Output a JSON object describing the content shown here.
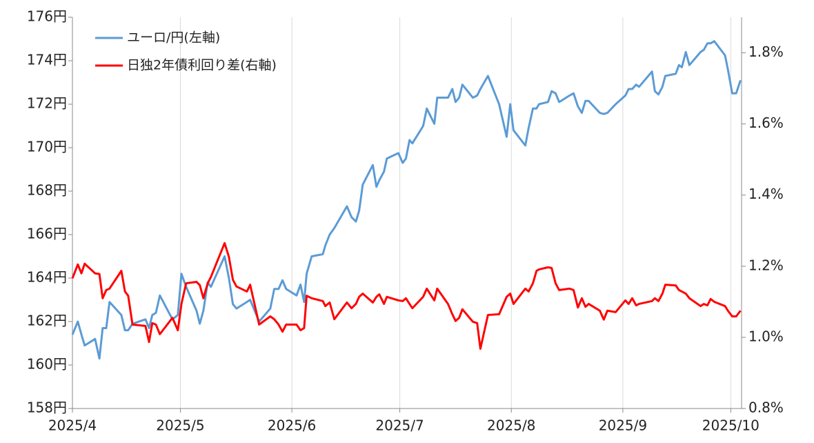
{
  "chart_data": {
    "type": "line",
    "x": [
      0,
      1.5,
      2.5,
      3.4,
      6.3,
      7.5,
      8.4,
      9.4,
      10.3,
      13.6,
      14.6,
      15.5,
      16.7,
      20.3,
      21.3,
      22.2,
      23.2,
      24.3,
      27.8,
      29.3,
      30.3,
      31.6,
      34.5,
      35.4,
      36.4,
      37.6,
      38.5,
      42.3,
      43.5,
      44.6,
      45.6,
      48.5,
      49.4,
      51.9,
      55.0,
      56.1,
      57.3,
      58.4,
      59.4,
      62.3,
      63.4,
      64.4,
      65.1,
      66.5,
      69.6,
      70.3,
      71.5,
      72.8,
      76.3,
      77.6,
      78.8,
      79.7,
      80.7,
      83.5,
      84.5,
      85.3,
      86.6,
      87.4,
      90.6,
      91.8,
      92.7,
      93.7,
      94.5,
      97.5,
      98.5,
      100.6,
      101.4,
      104.4,
      105.6,
      106.5,
      107.5,
      108.4,
      111.3,
      112.5,
      113.4,
      115.5,
      118.6,
      120.7,
      121.7,
      122.6,
      125.9,
      126.8,
      128.0,
      129.0,
      129.7,
      132.2,
      133.2,
      134.3,
      135.3,
      138.2,
      139.3,
      140.5,
      141.6,
      142.6,
      143.5,
      146.6,
      147.7,
      148.7,
      151.0,
      153.7,
      154.6,
      155.6,
      156.7,
      157.5,
      161.1,
      161.9,
      162.9,
      164.0,
      164.8,
      167.7,
      168.6,
      169.4,
      170.5,
      171.5,
      174.6,
      175.5,
      176.5,
      177.4,
      178.4,
      181.4,
      182.2,
      183.4,
      184.5,
      185.7
    ],
    "xlim": [
      0,
      186
    ],
    "xticks": [
      {
        "value": 0,
        "label": "2025/4"
      },
      {
        "value": 30,
        "label": "2025/5"
      },
      {
        "value": 61,
        "label": "2025/6"
      },
      {
        "value": 91,
        "label": "2025/7"
      },
      {
        "value": 122,
        "label": "2025/8"
      },
      {
        "value": 153,
        "label": "2025/9"
      },
      {
        "value": 183,
        "label": "2025/10"
      }
    ],
    "xgrid": true,
    "ylim": [
      158,
      176
    ],
    "yticks": [
      {
        "value": 158,
        "label": "158円"
      },
      {
        "value": 160,
        "label": "160円"
      },
      {
        "value": 162,
        "label": "162円"
      },
      {
        "value": 164,
        "label": "164円"
      },
      {
        "value": 166,
        "label": "166円"
      },
      {
        "value": 168,
        "label": "168円"
      },
      {
        "value": 170,
        "label": "170円"
      },
      {
        "value": 172,
        "label": "172円"
      },
      {
        "value": 174,
        "label": "174円"
      },
      {
        "value": 176,
        "label": "176円"
      }
    ],
    "y2lim": [
      0.8,
      1.9
    ],
    "y2ticks": [
      {
        "value": 0.8,
        "label": "0.8%"
      },
      {
        "value": 1.0,
        "label": "1.0%"
      },
      {
        "value": 1.2,
        "label": "1.2%"
      },
      {
        "value": 1.4,
        "label": "1.4%"
      },
      {
        "value": 1.6,
        "label": "1.6%"
      },
      {
        "value": 1.8,
        "label": "1.8%"
      }
    ],
    "legend": "upper-left",
    "series": [
      {
        "name": "ユーロ/円(左軸)",
        "color": "#5b9bd5",
        "values": [
          161.4,
          162.0,
          161.4,
          160.9,
          161.2,
          160.3,
          161.7,
          161.7,
          162.9,
          162.3,
          161.6,
          161.6,
          161.9,
          162.1,
          161.7,
          162.3,
          162.4,
          163.2,
          162.1,
          162.3,
          164.2,
          163.6,
          162.5,
          161.9,
          162.5,
          163.8,
          163.6,
          165.0,
          164.0,
          162.8,
          162.6,
          162.9,
          163.0,
          162.0,
          162.6,
          163.5,
          163.5,
          163.9,
          163.5,
          163.2,
          163.7,
          162.9,
          164.2,
          165.0,
          165.1,
          165.5,
          166.0,
          166.3,
          167.3,
          166.8,
          166.6,
          167.1,
          168.3,
          169.2,
          168.2,
          168.5,
          168.9,
          169.5,
          169.75,
          169.3,
          169.5,
          170.35,
          170.2,
          171.0,
          171.8,
          171.1,
          172.3,
          172.3,
          172.7,
          172.1,
          172.3,
          172.9,
          172.3,
          172.4,
          172.7,
          173.3,
          172.0,
          170.5,
          172.0,
          170.8,
          170.1,
          170.9,
          171.8,
          171.8,
          172.0,
          172.1,
          172.6,
          172.5,
          172.1,
          172.4,
          172.5,
          171.9,
          171.6,
          172.15,
          172.15,
          171.6,
          171.55,
          171.6,
          172.0,
          172.4,
          172.7,
          172.7,
          172.9,
          172.8,
          173.5,
          172.6,
          172.45,
          172.8,
          173.3,
          173.4,
          173.8,
          173.7,
          174.4,
          173.8,
          174.4,
          174.5,
          174.8,
          174.8,
          174.9,
          174.25,
          173.6,
          172.5,
          172.5,
          173.1
        ]
      },
      {
        "name": "日独2年債利回り差(右軸)",
        "color": "#ff0000",
        "axis": "y2",
        "values": [
          1.166,
          1.205,
          1.18,
          1.207,
          1.18,
          1.178,
          1.11,
          1.133,
          1.137,
          1.187,
          1.129,
          1.117,
          1.036,
          1.032,
          0.987,
          1.04,
          1.036,
          1.009,
          1.055,
          1.02,
          1.094,
          1.152,
          1.156,
          1.147,
          1.11,
          1.152,
          1.17,
          1.265,
          1.226,
          1.162,
          1.143,
          1.129,
          1.148,
          1.036,
          1.059,
          1.051,
          1.036,
          1.016,
          1.036,
          1.036,
          1.02,
          1.026,
          1.117,
          1.11,
          1.102,
          1.088,
          1.098,
          1.051,
          1.098,
          1.082,
          1.094,
          1.114,
          1.123,
          1.098,
          1.114,
          1.121,
          1.094,
          1.114,
          1.104,
          1.102,
          1.11,
          1.094,
          1.082,
          1.114,
          1.137,
          1.104,
          1.137,
          1.094,
          1.065,
          1.046,
          1.055,
          1.079,
          1.044,
          1.04,
          0.968,
          1.063,
          1.065,
          1.114,
          1.123,
          1.094,
          1.137,
          1.129,
          1.152,
          1.187,
          1.191,
          1.197,
          1.195,
          1.152,
          1.133,
          1.137,
          1.133,
          1.084,
          1.11,
          1.086,
          1.094,
          1.075,
          1.05,
          1.075,
          1.071,
          1.104,
          1.094,
          1.11,
          1.09,
          1.094,
          1.102,
          1.11,
          1.102,
          1.123,
          1.148,
          1.146,
          1.133,
          1.129,
          1.123,
          1.11,
          1.088,
          1.094,
          1.09,
          1.108,
          1.1,
          1.088,
          1.075,
          1.059,
          1.059,
          1.075
        ]
      }
    ]
  }
}
